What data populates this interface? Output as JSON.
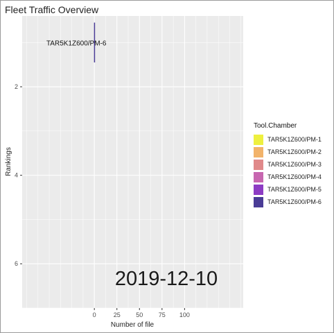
{
  "chart_data": {
    "type": "bar",
    "title": "Fleet Traffic Overview",
    "xlabel": "Number of file",
    "ylabel": "Rankings",
    "xlim": [
      -80,
      165
    ],
    "ylim": [
      0.4,
      7.0
    ],
    "x_ticks": [
      0,
      25,
      50,
      75,
      100
    ],
    "y_ticks": [
      2,
      4,
      6
    ],
    "grid": true,
    "orientation": "horizontal",
    "bars": [
      {
        "label": "TAR5K1Z600/PM-6",
        "rank": 1,
        "value": 1,
        "color": "#4a3c96"
      }
    ],
    "date_label": "2019-12-10",
    "legend": {
      "title": "Tool.Chamber",
      "position": "right",
      "items": [
        {
          "label": "TAR5K1Z600/PM-1",
          "color": "#eef03f"
        },
        {
          "label": "TAR5K1Z600/PM-2",
          "color": "#f2b36a"
        },
        {
          "label": "TAR5K1Z600/PM-3",
          "color": "#e0898a"
        },
        {
          "label": "TAR5K1Z600/PM-4",
          "color": "#c767b0"
        },
        {
          "label": "TAR5K1Z600/PM-5",
          "color": "#8d3cc4"
        },
        {
          "label": "TAR5K1Z600/PM-6",
          "color": "#4a3c96"
        }
      ]
    }
  }
}
